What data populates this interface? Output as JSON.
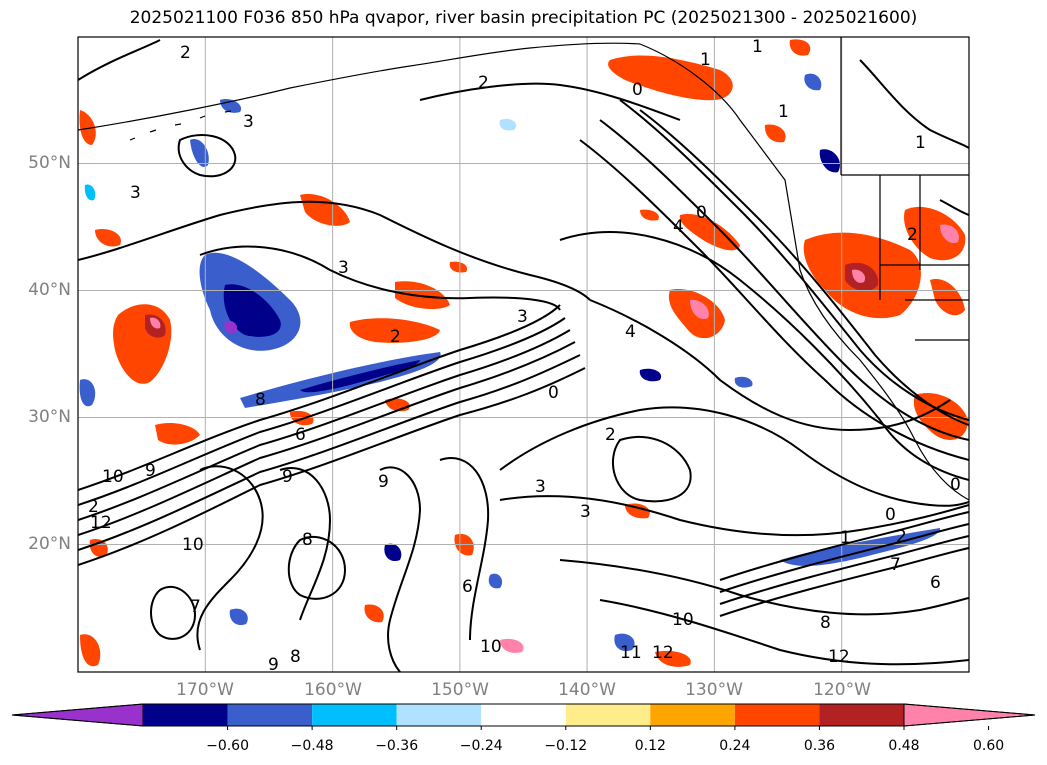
{
  "title": "2025021100 F036 850 hPa qvapor, river basin precipitation PC (2025021300 - 2025021600)",
  "map": {
    "lon_range": [
      -180,
      -110
    ],
    "lat_range": [
      10,
      60
    ],
    "lat_ticks": [
      {
        "value": 50,
        "label": "50°N"
      },
      {
        "value": 40,
        "label": "40°N"
      },
      {
        "value": 30,
        "label": "30°N"
      },
      {
        "value": 20,
        "label": "20°N"
      }
    ],
    "lon_ticks": [
      {
        "value": -170,
        "label": "170°W"
      },
      {
        "value": -160,
        "label": "160°W"
      },
      {
        "value": -150,
        "label": "150°W"
      },
      {
        "value": -140,
        "label": "140°W"
      },
      {
        "value": -130,
        "label": "130°W"
      },
      {
        "value": -120,
        "label": "120°W"
      }
    ],
    "gridlines": true,
    "contour_labels": [
      "2",
      "2",
      "0",
      "1",
      "1",
      "1",
      "3",
      "4",
      "0",
      "3",
      "2",
      "3",
      "4",
      "0",
      "3",
      "2",
      "3",
      "6",
      "8",
      "9",
      "10",
      "12",
      "10",
      "11",
      "12",
      "9",
      "9",
      "8",
      "0",
      "1",
      "2",
      "6",
      "7",
      "8",
      "10",
      "12",
      "9",
      "8",
      "3",
      "2",
      "0",
      "1",
      "2",
      "6",
      "7",
      "10"
    ]
  },
  "colorbar": {
    "orientation": "horizontal",
    "extend": "both",
    "colors": [
      "#9932cc",
      "#00008b",
      "#3a5fcd",
      "#00bfff",
      "#b0e2ff",
      "#ffffff",
      "#ffec8b",
      "#ffa500",
      "#ff4500",
      "#b22222",
      "#ff82ab"
    ],
    "ticks": [
      "−0.60",
      "−0.48",
      "−0.36",
      "−0.24",
      "−0.12",
      "0.12",
      "0.24",
      "0.36",
      "0.48",
      "0.60"
    ]
  }
}
